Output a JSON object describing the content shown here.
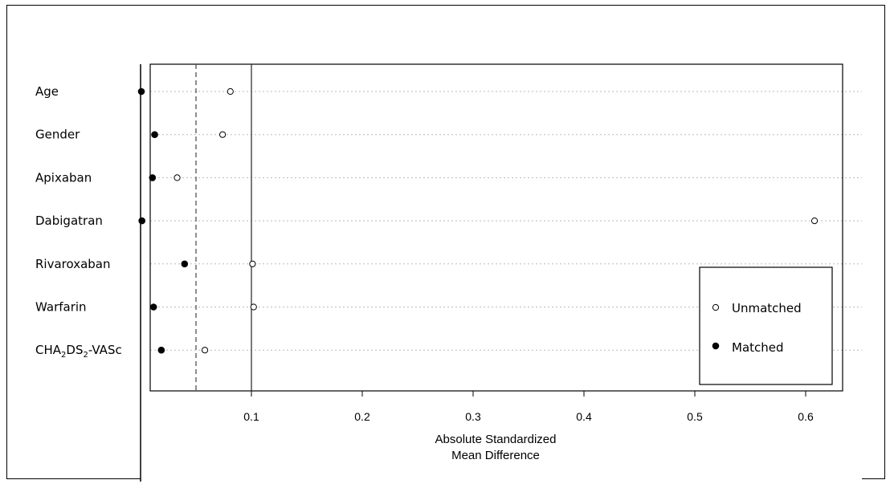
{
  "chart_data": {
    "type": "scatter",
    "variables": [
      "Age",
      "Gender",
      "Apixaban",
      "Dabigatran",
      "Rivaroxaban",
      "Warfarin",
      "CHA2DS2-VASc"
    ],
    "cha_label": {
      "p1": "CHA",
      "s1": "2",
      "p2": "DS",
      "s2": "2",
      "p3": "-VASc"
    },
    "series": [
      {
        "name": "Unmatched",
        "marker": "open-circle",
        "values": [
          0.081,
          0.074,
          0.033,
          0.608,
          0.101,
          0.102,
          0.058
        ]
      },
      {
        "name": "Matched",
        "marker": "filled-circle",
        "values": [
          0.0,
          0.012,
          0.01,
          0.0005,
          0.039,
          0.011,
          0.018
        ]
      }
    ],
    "x_ticks": [
      "0.1",
      "0.2",
      "0.3",
      "0.4",
      "0.5",
      "0.6"
    ],
    "x_tick_values": [
      0.1,
      0.2,
      0.3,
      0.4,
      0.5,
      0.6
    ],
    "xlim": [
      0,
      0.633
    ],
    "xlabel_line1": "Absolute Standardized",
    "xlabel_line2": "Mean Difference",
    "reference_lines": [
      {
        "value": 0.1,
        "style": "solid"
      },
      {
        "value": 0.05,
        "style": "dashed"
      }
    ],
    "grid": "horizontal-dotted",
    "legend": {
      "position": "bottom-right",
      "entries": [
        {
          "label": "Unmatched",
          "marker": "open-circle"
        },
        {
          "label": "Matched",
          "marker": "filled-circle"
        }
      ]
    }
  }
}
